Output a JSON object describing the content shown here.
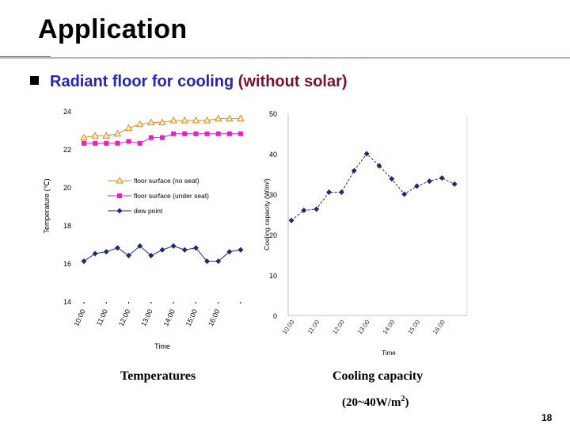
{
  "slide": {
    "title": "Application",
    "bullet_part1": "Radiant floor for cooling ",
    "bullet_part2": "(without solar)",
    "page_number": "18",
    "caption_left": "Temperatures",
    "caption_right_line1": "Cooling capacity",
    "caption_right_line2_prefix": "(20~40W/m",
    "caption_right_line2_sup": "2",
    "caption_right_line2_suffix": ")"
  },
  "chart_data": [
    {
      "type": "line",
      "ylabel": "Temperature (℃)",
      "xlabel": "Time",
      "ylim": [
        14,
        24
      ],
      "yticks": [
        "14",
        "16",
        "18",
        "20",
        "22",
        "24"
      ],
      "xtick_labels": [
        "10:00",
        "11:00",
        "12:00",
        "13:00",
        "14:00",
        "15:00",
        "16:00"
      ],
      "x": [
        10.0,
        10.5,
        11.0,
        11.5,
        12.0,
        12.5,
        13.0,
        13.5,
        14.0,
        14.5,
        15.0,
        15.5,
        16.0,
        16.5,
        17.0
      ],
      "legend_position": "center-left",
      "series": [
        {
          "name": "floor surface (no seat)",
          "marker": "triangle",
          "color": "#e08a1e",
          "values": [
            22.6,
            22.7,
            22.7,
            22.8,
            23.1,
            23.3,
            23.4,
            23.4,
            23.5,
            23.5,
            23.5,
            23.5,
            23.6,
            23.6,
            23.6
          ]
        },
        {
          "name": "floor surface (under seat)",
          "marker": "square",
          "color": "#e81ec8",
          "values": [
            22.3,
            22.3,
            22.3,
            22.3,
            22.4,
            22.3,
            22.6,
            22.6,
            22.8,
            22.8,
            22.8,
            22.8,
            22.8,
            22.8,
            22.8
          ]
        },
        {
          "name": "dew point",
          "marker": "diamond",
          "color": "#1c2a78",
          "values": [
            16.1,
            16.5,
            16.6,
            16.8,
            16.4,
            16.9,
            16.4,
            16.7,
            16.9,
            16.7,
            16.8,
            16.1,
            16.1,
            16.6,
            16.7
          ]
        }
      ]
    },
    {
      "type": "line",
      "ylabel": "Cooling capacity (W/m²)",
      "xlabel": "Time",
      "ylim": [
        0,
        50
      ],
      "yticks": [
        "0",
        "10",
        "20",
        "30",
        "40",
        "50"
      ],
      "xtick_labels": [
        "10:00",
        "11:00",
        "12:00",
        "13:00",
        "14:00",
        "15:00",
        "16:00"
      ],
      "x": [
        10.0,
        10.5,
        11.0,
        11.5,
        12.0,
        12.5,
        13.0,
        13.5,
        14.0,
        14.5,
        15.0,
        15.5,
        16.0,
        16.5,
        17.0
      ],
      "series": [
        {
          "marker": "diamond",
          "color": "#1c2a78",
          "line_style": "dashed",
          "values": [
            23.5,
            26.0,
            26.3,
            30.5,
            30.5,
            35.8,
            40.0,
            37.0,
            33.8,
            30.0,
            32.0,
            33.2,
            34.0,
            32.5,
            null
          ]
        }
      ]
    }
  ]
}
